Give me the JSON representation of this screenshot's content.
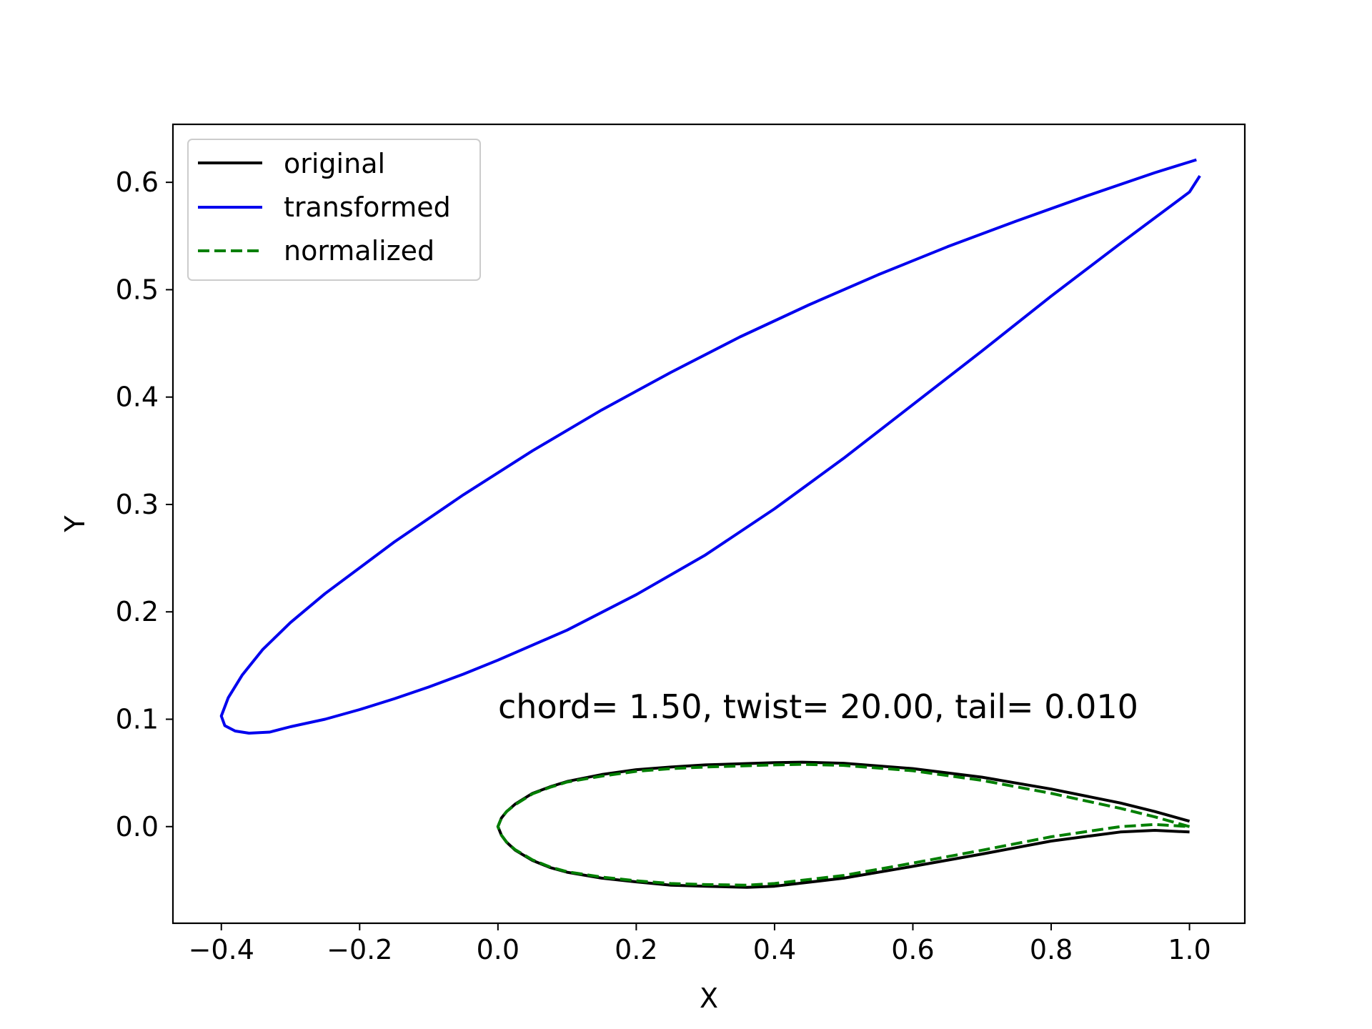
{
  "chart_data": {
    "type": "line",
    "title": "",
    "xlabel": "X",
    "ylabel": "Y",
    "xlim": [
      -0.47,
      1.08
    ],
    "ylim": [
      -0.09,
      0.654
    ],
    "xticks": [
      -0.4,
      -0.2,
      0.0,
      0.2,
      0.4,
      0.6,
      0.8,
      1.0
    ],
    "yticks": [
      0.0,
      0.1,
      0.2,
      0.3,
      0.4,
      0.5,
      0.6
    ],
    "xtick_labels": [
      "−0.4",
      "−0.2",
      "0.0",
      "0.2",
      "0.4",
      "0.6",
      "0.8",
      "1.0"
    ],
    "ytick_labels": [
      "0.0",
      "0.1",
      "0.2",
      "0.3",
      "0.4",
      "0.5",
      "0.6"
    ],
    "grid": false,
    "legend_position": "upper-left",
    "annotation": "chord= 1.50, twist= 20.00, tail= 0.010",
    "series": [
      {
        "name": "original",
        "color": "#000000",
        "dash": "solid",
        "x": [
          1.0,
          0.95,
          0.9,
          0.8,
          0.7,
          0.6,
          0.5,
          0.44,
          0.4,
          0.3,
          0.25,
          0.2,
          0.15,
          0.1,
          0.075,
          0.05,
          0.025,
          0.0125,
          0.005,
          0.0,
          0.005,
          0.0125,
          0.025,
          0.05,
          0.075,
          0.1,
          0.15,
          0.2,
          0.25,
          0.3,
          0.36,
          0.4,
          0.5,
          0.6,
          0.7,
          0.8,
          0.9,
          0.95,
          1.0
        ],
        "y": [
          0.005,
          0.014,
          0.022,
          0.035,
          0.046,
          0.054,
          0.059,
          0.06,
          0.0595,
          0.0575,
          0.0555,
          0.053,
          0.0485,
          0.042,
          0.037,
          0.031,
          0.021,
          0.014,
          0.008,
          0.0,
          -0.008,
          -0.0145,
          -0.022,
          -0.0315,
          -0.038,
          -0.0425,
          -0.048,
          -0.0515,
          -0.0545,
          -0.0555,
          -0.0565,
          -0.0555,
          -0.048,
          -0.037,
          -0.0255,
          -0.0135,
          -0.005,
          -0.0035,
          -0.005
        ]
      },
      {
        "name": "transformed",
        "color": "#0000ee",
        "dash": "solid",
        "x": [
          1.01,
          0.95,
          0.85,
          0.75,
          0.65,
          0.55,
          0.45,
          0.35,
          0.25,
          0.15,
          0.05,
          -0.05,
          -0.15,
          -0.25,
          -0.3,
          -0.34,
          -0.37,
          -0.39,
          -0.4,
          -0.395,
          -0.38,
          -0.36,
          -0.33,
          -0.3,
          -0.25,
          -0.2,
          -0.15,
          -0.1,
          -0.05,
          0.0,
          0.1,
          0.2,
          0.3,
          0.4,
          0.5,
          0.6,
          0.7,
          0.8,
          0.9,
          1.0,
          1.015
        ],
        "y": [
          0.621,
          0.609,
          0.587,
          0.564,
          0.54,
          0.514,
          0.486,
          0.456,
          0.423,
          0.388,
          0.35,
          0.309,
          0.265,
          0.217,
          0.19,
          0.165,
          0.141,
          0.12,
          0.103,
          0.094,
          0.089,
          0.087,
          0.088,
          0.093,
          0.1,
          0.109,
          0.119,
          0.13,
          0.142,
          0.155,
          0.183,
          0.216,
          0.253,
          0.296,
          0.343,
          0.393,
          0.443,
          0.494,
          0.543,
          0.591,
          0.606
        ]
      },
      {
        "name": "normalized",
        "color": "#007f00",
        "dash": "dashed",
        "x": [
          1.0,
          0.95,
          0.9,
          0.8,
          0.7,
          0.6,
          0.5,
          0.44,
          0.4,
          0.3,
          0.25,
          0.2,
          0.15,
          0.1,
          0.075,
          0.05,
          0.025,
          0.0125,
          0.005,
          0.0,
          0.005,
          0.0125,
          0.025,
          0.05,
          0.075,
          0.1,
          0.15,
          0.2,
          0.25,
          0.3,
          0.36,
          0.4,
          0.5,
          0.6,
          0.7,
          0.8,
          0.9,
          0.95,
          1.0
        ],
        "y": [
          0.0,
          0.009,
          0.017,
          0.031,
          0.043,
          0.052,
          0.057,
          0.058,
          0.0575,
          0.0555,
          0.054,
          0.0515,
          0.047,
          0.0415,
          0.0365,
          0.0305,
          0.0205,
          0.014,
          0.008,
          0.0,
          -0.008,
          -0.0145,
          -0.0215,
          -0.031,
          -0.0375,
          -0.042,
          -0.047,
          -0.0505,
          -0.053,
          -0.054,
          -0.0545,
          -0.053,
          -0.0455,
          -0.034,
          -0.022,
          -0.0095,
          0.0,
          0.002,
          0.0
        ]
      }
    ]
  }
}
